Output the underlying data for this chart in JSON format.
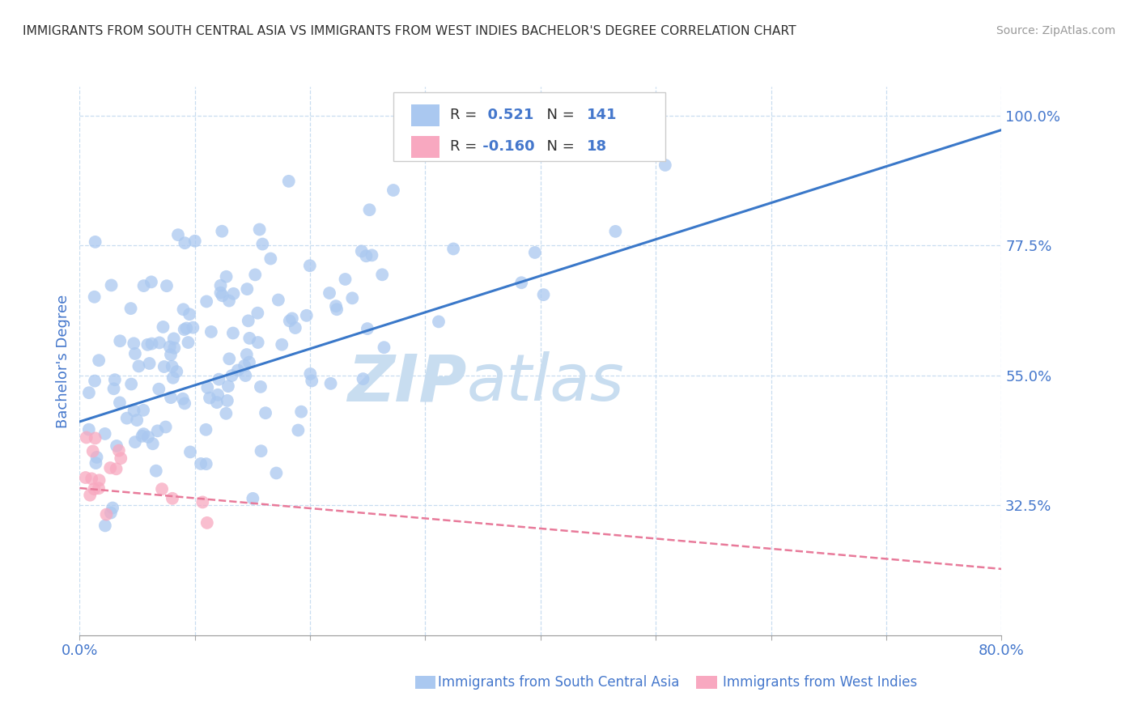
{
  "title": "IMMIGRANTS FROM SOUTH CENTRAL ASIA VS IMMIGRANTS FROM WEST INDIES BACHELOR'S DEGREE CORRELATION CHART",
  "source": "Source: ZipAtlas.com",
  "xlabel_blue": "Immigrants from South Central Asia",
  "xlabel_pink": "Immigrants from West Indies",
  "ylabel": "Bachelor's Degree",
  "xlim": [
    0.0,
    0.8
  ],
  "ylim": [
    0.1,
    1.05
  ],
  "xticks": [
    0.0,
    0.1,
    0.2,
    0.3,
    0.4,
    0.5,
    0.6,
    0.7,
    0.8
  ],
  "yticks": [
    0.325,
    0.55,
    0.775,
    1.0
  ],
  "ytick_labels": [
    "32.5%",
    "55.0%",
    "77.5%",
    "100.0%"
  ],
  "R_blue": 0.521,
  "N_blue": 141,
  "R_pink": -0.16,
  "N_pink": 18,
  "color_blue": "#aac8f0",
  "color_pink": "#f8a8c0",
  "line_color_blue": "#3a78c9",
  "line_color_pink": "#e87a9a",
  "watermark_color": "#c8ddf0",
  "legend_text_color": "#3366cc",
  "title_color": "#303030",
  "tick_label_color": "#4477cc",
  "grid_color": "#c8ddf0",
  "blue_line_x0": 0.0,
  "blue_line_y0": 0.47,
  "blue_line_x1": 0.8,
  "blue_line_y1": 0.975,
  "pink_line_x0": 0.0,
  "pink_line_y0": 0.355,
  "pink_line_x1": 0.8,
  "pink_line_y1": 0.215
}
